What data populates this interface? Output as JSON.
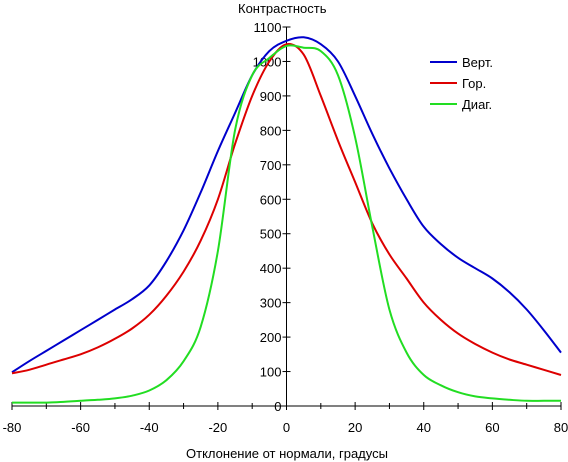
{
  "chart_data": {
    "type": "line",
    "title": "",
    "xlabel": "Отклонение от нормали, градусы",
    "ylabel": "Контрастность",
    "xlim": [
      -80,
      80
    ],
    "ylim": [
      0,
      1100
    ],
    "x_ticks": [
      -80,
      -60,
      -40,
      -20,
      0,
      20,
      40,
      60,
      80
    ],
    "y_ticks": [
      0,
      100,
      200,
      300,
      400,
      500,
      600,
      700,
      800,
      900,
      1000,
      1100
    ],
    "grid": false,
    "legend_position": "top-right",
    "x": [
      -80,
      -75,
      -70,
      -65,
      -60,
      -55,
      -50,
      -45,
      -40,
      -35,
      -30,
      -25,
      -20,
      -15,
      -10,
      -5,
      0,
      5,
      10,
      15,
      20,
      25,
      30,
      35,
      40,
      45,
      50,
      55,
      60,
      65,
      70,
      75,
      80
    ],
    "series": [
      {
        "name": "Верт.",
        "color": "#0000cc",
        "values": [
          98,
          130,
          160,
          190,
          220,
          250,
          280,
          310,
          350,
          420,
          510,
          620,
          740,
          850,
          960,
          1030,
          1060,
          1070,
          1050,
          1000,
          900,
          790,
          690,
          600,
          520,
          470,
          430,
          400,
          370,
          330,
          280,
          220,
          155
        ]
      },
      {
        "name": "Гор.",
        "color": "#dd0000",
        "values": [
          95,
          105,
          120,
          135,
          150,
          170,
          195,
          225,
          265,
          320,
          390,
          480,
          600,
          760,
          900,
          1000,
          1050,
          1020,
          900,
          770,
          650,
          530,
          440,
          370,
          300,
          250,
          210,
          180,
          155,
          135,
          120,
          105,
          90
        ]
      },
      {
        "name": "Диаг.",
        "color": "#22dd22",
        "values": [
          10,
          10,
          10,
          12,
          15,
          18,
          22,
          30,
          45,
          75,
          130,
          230,
          450,
          800,
          960,
          1010,
          1045,
          1040,
          1030,
          960,
          780,
          520,
          280,
          155,
          90,
          60,
          40,
          28,
          22,
          18,
          15,
          15,
          15
        ]
      }
    ]
  }
}
